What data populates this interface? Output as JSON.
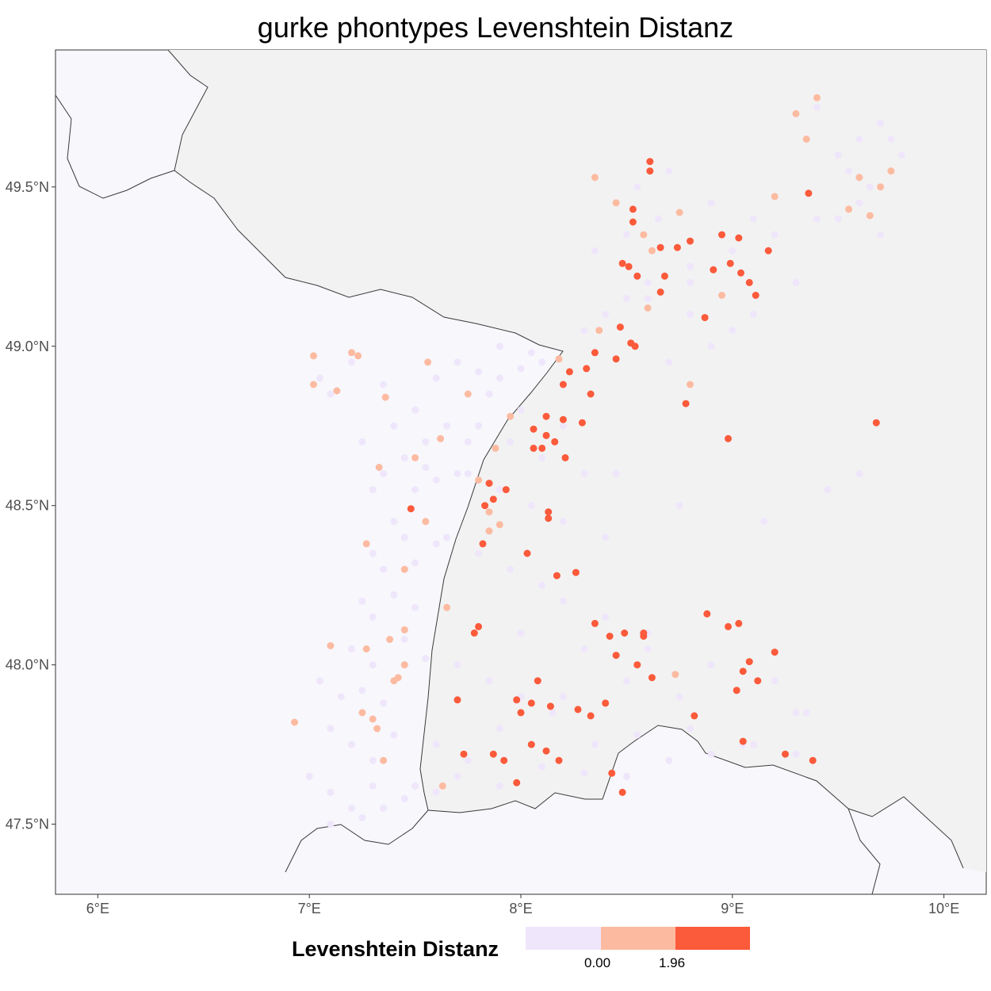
{
  "title": "gurke phontypes Levenshtein Distanz",
  "axes": {
    "x_ticks": [
      "6°E",
      "7°E",
      "8°E",
      "9°E",
      "10°E"
    ],
    "y_ticks": [
      "49.5°N",
      "49.0°N",
      "48.5°N",
      "48.0°N",
      "47.5°N"
    ]
  },
  "legend": {
    "title": "Levenshtein Distanz",
    "labels": [
      "0.00",
      "1.96"
    ],
    "colors": [
      "#efe6fb",
      "#fcbba1",
      "#fb5a3b"
    ]
  },
  "colors": {
    "background_west": "#f7f7fc",
    "background_east": "#f2f2f2",
    "border": "#3a3a3a"
  },
  "chart_data": {
    "type": "scatter",
    "title": "gurke phontypes Levenshtein Distanz",
    "xlim": [
      5.8,
      10.2
    ],
    "ylim": [
      47.28,
      49.93
    ],
    "x_ticks": [
      6,
      7,
      8,
      9,
      10
    ],
    "y_ticks": [
      47.5,
      48.0,
      48.5,
      49.0,
      49.5
    ],
    "series": [
      {
        "name": "0.00",
        "color": "#efe6fb",
        "x": [
          7.05,
          7.1,
          7.2,
          7.35,
          7.5,
          7.6,
          7.7,
          7.8,
          7.9,
          8.0,
          8.1,
          7.25,
          7.4,
          7.45,
          7.55,
          7.65,
          7.75,
          7.3,
          7.35,
          7.5,
          7.55,
          7.6,
          7.7,
          7.4,
          7.45,
          7.3,
          7.35,
          7.5,
          7.6,
          7.25,
          7.3,
          7.4,
          7.5,
          7.2,
          7.3,
          7.45,
          7.55,
          7.05,
          7.15,
          7.25,
          7.35,
          7.1,
          7.2,
          7.3,
          7.4,
          7.0,
          7.1,
          7.2,
          7.3,
          7.45,
          7.1,
          7.25,
          7.35,
          7.5,
          7.6,
          7.7,
          7.9,
          8.1,
          8.3,
          8.5,
          8.7,
          8.9,
          9.1,
          9.3,
          7.65,
          7.8,
          7.95,
          8.1,
          8.2,
          8.4,
          8.6,
          7.7,
          7.85,
          8.0,
          8.15,
          7.75,
          7.9,
          8.05,
          8.2,
          8.4,
          7.8,
          7.95,
          8.1,
          8.3,
          7.85,
          8.0,
          8.2,
          7.9,
          8.05,
          8.3,
          8.4,
          8.5,
          8.6,
          8.8,
          9.0,
          8.35,
          8.5,
          8.65,
          8.8,
          8.55,
          8.7,
          8.9,
          9.1,
          8.6,
          8.8,
          9.0,
          9.2,
          9.4,
          8.7,
          8.9,
          9.1,
          9.3,
          9.5,
          9.6,
          9.7,
          9.8,
          9.4,
          9.55,
          9.65,
          9.75,
          9.5,
          9.6,
          9.7,
          8.45,
          8.75,
          9.15,
          9.45,
          9.6,
          8.2,
          8.5,
          8.6,
          8.9,
          9.2,
          9.35,
          8.0,
          8.3,
          8.8,
          9.05,
          9.3,
          7.6,
          7.75,
          7.9,
          8.35,
          8.55,
          8.75
        ],
        "y": [
          48.9,
          48.85,
          48.95,
          48.88,
          48.8,
          48.9,
          48.95,
          48.92,
          48.9,
          48.93,
          48.95,
          48.7,
          48.75,
          48.65,
          48.7,
          48.75,
          48.7,
          48.55,
          48.6,
          48.55,
          48.62,
          48.58,
          48.6,
          48.45,
          48.4,
          48.35,
          48.3,
          48.32,
          48.38,
          48.2,
          48.15,
          48.22,
          48.18,
          48.05,
          48.0,
          48.08,
          48.02,
          47.95,
          47.9,
          47.92,
          47.88,
          47.8,
          47.75,
          47.7,
          47.78,
          47.65,
          47.6,
          47.55,
          47.62,
          47.58,
          47.5,
          47.52,
          47.55,
          47.62,
          47.6,
          47.65,
          47.62,
          47.68,
          47.66,
          47.65,
          47.7,
          47.72,
          47.75,
          47.72,
          48.4,
          48.35,
          48.3,
          48.25,
          48.2,
          48.15,
          48.1,
          48.0,
          47.95,
          47.9,
          47.85,
          48.6,
          48.55,
          48.5,
          48.45,
          48.4,
          48.75,
          48.7,
          48.65,
          48.6,
          48.85,
          48.8,
          48.75,
          49.0,
          48.98,
          49.05,
          49.1,
          49.15,
          49.2,
          49.1,
          49.05,
          49.3,
          49.35,
          49.4,
          49.25,
          49.5,
          49.55,
          49.45,
          49.4,
          49.15,
          49.2,
          49.3,
          49.35,
          49.4,
          48.95,
          49.0,
          49.1,
          49.2,
          49.6,
          49.65,
          49.7,
          49.6,
          49.75,
          49.55,
          49.5,
          49.65,
          49.4,
          49.45,
          49.35,
          48.6,
          48.5,
          48.45,
          48.55,
          48.6,
          47.9,
          47.95,
          48.05,
          48.0,
          47.95,
          47.85,
          48.1,
          48.05,
          47.8,
          47.75,
          47.85,
          47.75,
          47.7,
          47.8,
          47.75,
          47.78,
          47.9
        ]
      },
      {
        "name": "",
        "color": "#fcbba1",
        "x": [
          7.02,
          7.2,
          7.02,
          7.23,
          7.13,
          7.36,
          7.62,
          7.56,
          7.8,
          7.85,
          7.5,
          7.33,
          7.27,
          7.45,
          7.85,
          7.9,
          7.88,
          7.45,
          7.38,
          7.27,
          7.4,
          7.65,
          7.3,
          7.25,
          7.1,
          7.45,
          7.42,
          6.93,
          7.32,
          7.35,
          7.63,
          8.35,
          8.37,
          8.58,
          8.45,
          8.75,
          8.62,
          8.6,
          8.95,
          9.2,
          9.35,
          9.6,
          9.55,
          9.7,
          9.75,
          9.65,
          9.3,
          9.4,
          8.73,
          8.8,
          7.75,
          7.55,
          7.95,
          8.18
        ],
        "y": [
          48.97,
          48.98,
          48.88,
          48.97,
          48.86,
          48.84,
          48.71,
          48.95,
          48.58,
          48.42,
          48.65,
          48.62,
          48.38,
          48.3,
          48.48,
          48.44,
          48.68,
          48.11,
          48.08,
          48.05,
          47.95,
          48.18,
          47.83,
          47.85,
          48.06,
          48.0,
          47.96,
          47.82,
          47.8,
          47.7,
          47.62,
          49.53,
          49.05,
          49.35,
          49.45,
          49.42,
          49.3,
          49.12,
          49.16,
          49.47,
          49.65,
          49.53,
          49.43,
          49.5,
          49.55,
          49.41,
          49.73,
          49.78,
          47.97,
          48.88,
          48.85,
          48.45,
          48.78,
          48.96
        ]
      },
      {
        "name": "1.96",
        "color": "#fb5a3b",
        "x": [
          8.8,
          8.74,
          8.61,
          8.61,
          8.53,
          8.53,
          8.95,
          9.03,
          9.17,
          9.36,
          8.91,
          8.99,
          9.04,
          9.08,
          8.48,
          8.55,
          8.66,
          8.51,
          8.68,
          8.66,
          9.11,
          8.87,
          8.78,
          8.47,
          8.52,
          8.54,
          8.35,
          8.45,
          8.31,
          8.23,
          8.2,
          8.33,
          8.12,
          8.2,
          8.06,
          8.12,
          8.06,
          8.16,
          8.1,
          8.21,
          8.29,
          7.85,
          7.87,
          7.83,
          7.93,
          7.82,
          8.13,
          8.13,
          8.03,
          8.17,
          8.26,
          8.49,
          8.35,
          8.42,
          8.45,
          8.55,
          8.58,
          8.58,
          8.62,
          8.82,
          8.88,
          8.98,
          9.03,
          9.05,
          9.08,
          9.02,
          9.12,
          9.2,
          9.05,
          9.25,
          9.38,
          7.73,
          7.87,
          7.92,
          8.05,
          8.12,
          8.18,
          8.27,
          8.33,
          8.4,
          8.43,
          8.48,
          7.7,
          7.78,
          7.8,
          7.98,
          8.0,
          8.05,
          8.08,
          8.14,
          9.68,
          8.98,
          7.48,
          7.98
        ],
        "y": [
          49.33,
          49.31,
          49.55,
          49.58,
          49.39,
          49.43,
          49.35,
          49.34,
          49.3,
          49.48,
          49.24,
          49.26,
          49.23,
          49.2,
          49.26,
          49.22,
          49.17,
          49.25,
          49.22,
          49.31,
          49.16,
          49.09,
          48.82,
          49.06,
          49.01,
          49.0,
          48.98,
          48.96,
          48.93,
          48.92,
          48.88,
          48.85,
          48.78,
          48.77,
          48.74,
          48.72,
          48.68,
          48.7,
          48.68,
          48.65,
          48.76,
          48.57,
          48.52,
          48.5,
          48.55,
          48.38,
          48.48,
          48.46,
          48.35,
          48.28,
          48.29,
          48.1,
          48.13,
          48.09,
          48.03,
          48.0,
          48.1,
          48.09,
          47.96,
          47.84,
          48.16,
          48.12,
          48.13,
          47.98,
          48.01,
          47.92,
          47.95,
          48.04,
          47.76,
          47.72,
          47.7,
          47.72,
          47.72,
          47.7,
          47.75,
          47.73,
          47.7,
          47.86,
          47.84,
          47.88,
          47.66,
          47.6,
          47.89,
          48.1,
          48.12,
          47.89,
          47.85,
          47.88,
          47.95,
          47.87,
          48.76,
          48.71,
          48.49,
          47.63
        ]
      }
    ],
    "legend": {
      "title": "Levenshtein Distanz",
      "position": "bottom"
    },
    "grid": false
  }
}
